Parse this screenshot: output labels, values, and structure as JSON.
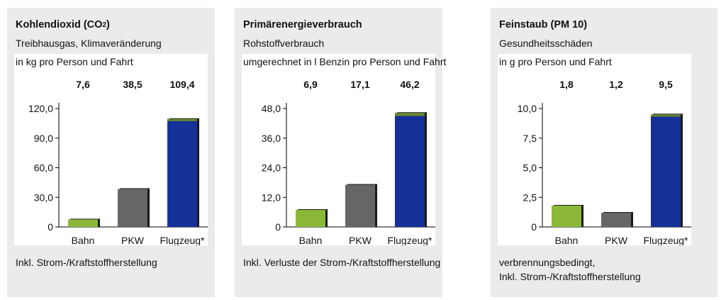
{
  "colors": {
    "bahn": "#8cb83a",
    "pkw": "#666666",
    "flugzeug": "#16309a",
    "flugzeug_top": "#6b8a2a",
    "bar_shadow": "#1a1a1a",
    "panel_bg": "#ebebeb",
    "plot_bg": "#ffffff"
  },
  "panels": [
    {
      "title": "Kohlendioxid (CO",
      "title_sub": "2",
      "title_end": ")",
      "subtitle": "Treibhausgas, Klimaveränderung",
      "unit": "in kg pro Person und Fahrt",
      "note_lines": [
        "Inkl. Strom-/Kraftstoffherstellung"
      ]
    },
    {
      "title": "Primärenergieverbrauch",
      "title_sub": "",
      "title_end": "",
      "subtitle": "Rohstoffverbrauch",
      "unit": "umgerechnet in l Benzin pro Person und Fahrt",
      "note_lines": [
        "Inkl. Verluste der Strom-/Kraftstoffherstellung"
      ]
    },
    {
      "title": "Feinstaub (PM 10)",
      "title_sub": "",
      "title_end": "",
      "subtitle": "Gesundheitsschäden",
      "unit": "in g pro Person und Fahrt",
      "note_lines": [
        "verbrennungsbedingt,",
        "Inkl. Strom-/Kraftstoffherstellung"
      ]
    }
  ],
  "chart_data": [
    {
      "type": "bar",
      "categories": [
        "Bahn",
        "PKW",
        "Flugzeug*"
      ],
      "values": [
        7.6,
        38.5,
        109.4
      ],
      "value_labels": [
        "7,6",
        "38,5",
        "109,4"
      ],
      "top_segment_values": [
        0,
        0,
        2
      ],
      "yticks": [
        "0",
        "30,0",
        "60,0",
        "90,0",
        "120,0"
      ],
      "ylim": [
        0,
        120
      ],
      "grid": false
    },
    {
      "type": "bar",
      "categories": [
        "Bahn",
        "PKW",
        "Flugzeug*"
      ],
      "values": [
        6.9,
        17.1,
        46.2
      ],
      "value_labels": [
        "6,9",
        "17,1",
        "46,2"
      ],
      "top_segment_values": [
        0,
        0,
        1.2
      ],
      "yticks": [
        "0",
        "12,0",
        "24,0",
        "36,0",
        "48,0"
      ],
      "ylim": [
        0,
        48
      ],
      "grid": false
    },
    {
      "type": "bar",
      "categories": [
        "Bahn",
        "PKW",
        "Flugzeug*"
      ],
      "values": [
        1.8,
        1.2,
        9.5
      ],
      "value_labels": [
        "1,8",
        "1,2",
        "9,5"
      ],
      "top_segment_values": [
        0,
        0,
        0.12
      ],
      "yticks": [
        "0",
        "2,5",
        "5,0",
        "7,5",
        "10,0"
      ],
      "ylim": [
        0,
        10
      ],
      "grid": false
    }
  ]
}
